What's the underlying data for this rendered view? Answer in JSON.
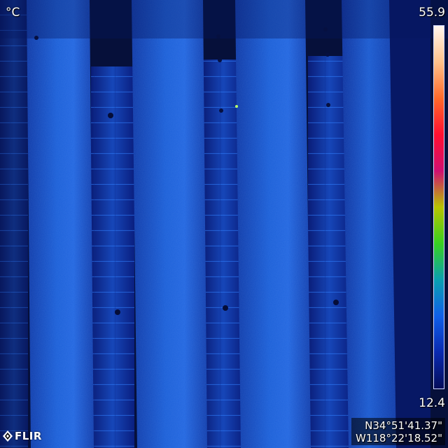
{
  "thermal_view": {
    "unit": "°C",
    "scale": {
      "max": "55.9",
      "min": "12.4",
      "colors": [
        "#fff6ee",
        "#ffc28a",
        "#ff6a2a",
        "#ff1030",
        "#d01070",
        "#b8c400",
        "#38d020",
        "#0aa0b0",
        "#1060e8",
        "#0a2ab0",
        "#050e5a"
      ]
    },
    "gps": {
      "latitude": "N34°51'41.37\"",
      "longitude": "W118°22'18.52\""
    },
    "brand": "FLIR",
    "palette": {
      "background": "#06103a",
      "panel_row": "#1a5fd6",
      "panel_cell": "#2a78f0",
      "gap": "#0a1e7a"
    }
  }
}
